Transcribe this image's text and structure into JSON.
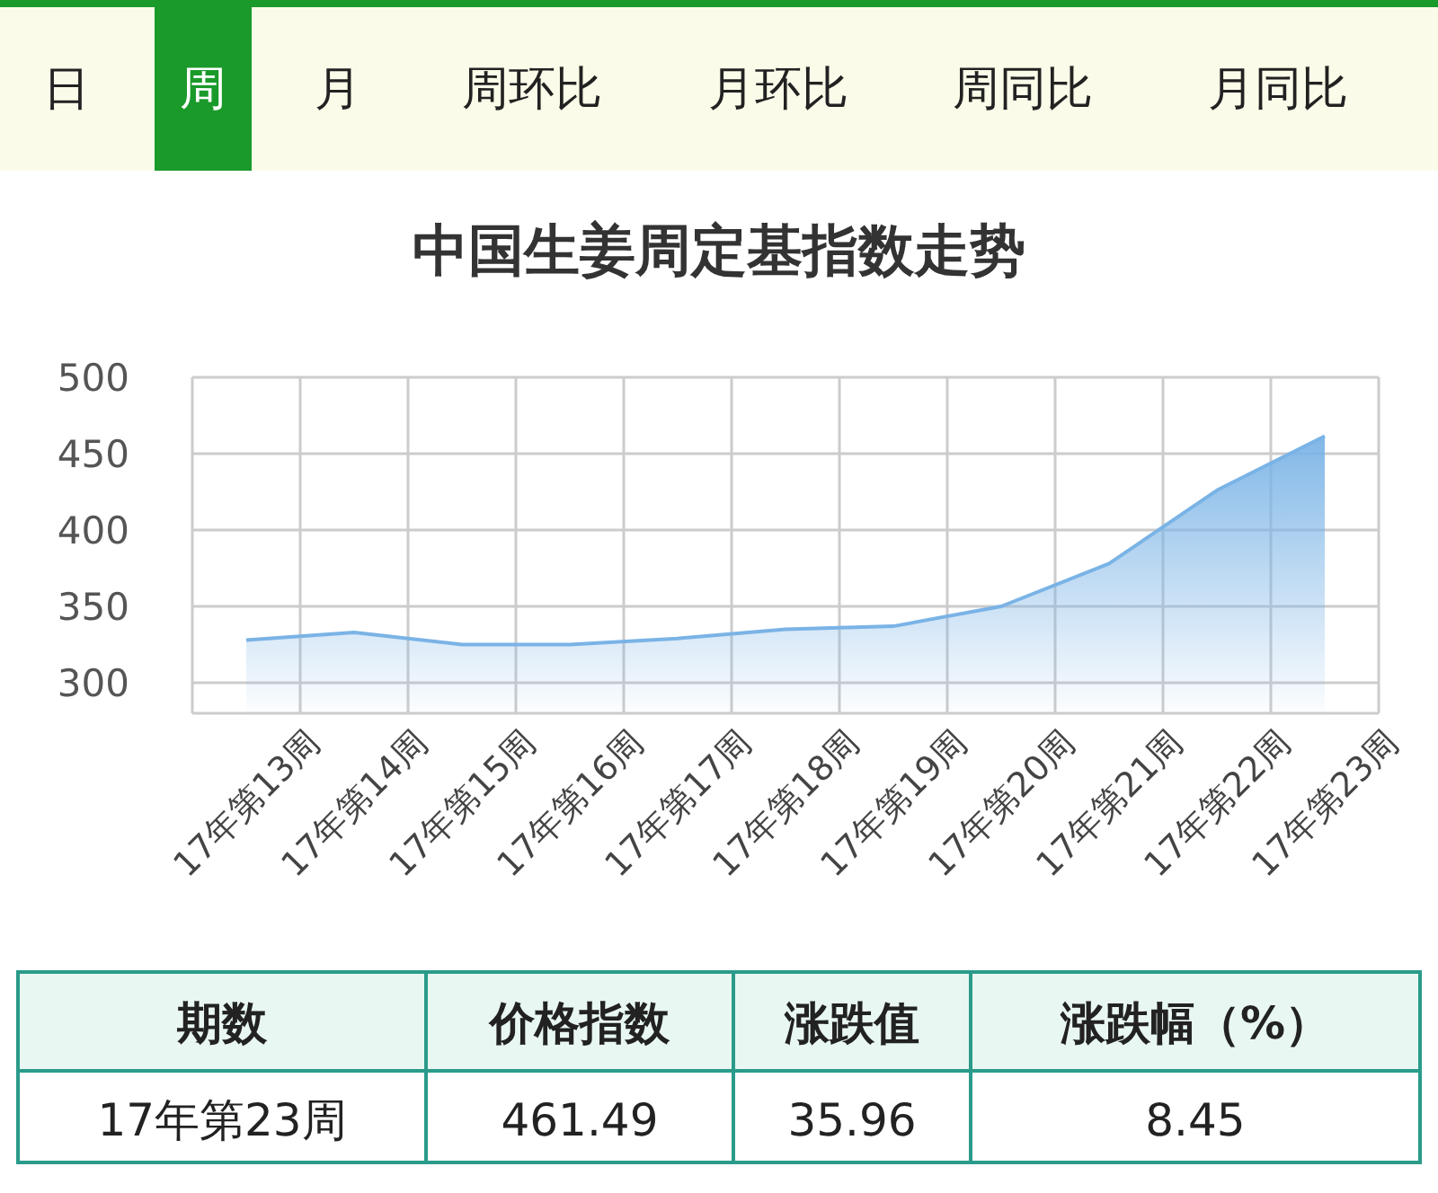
{
  "chart_data": {
    "type": "area",
    "title": "中国生姜周定基指数走势",
    "categories": [
      "17年第13周",
      "17年第14周",
      "17年第15周",
      "17年第16周",
      "17年第17周",
      "17年第18周",
      "17年第19周",
      "17年第20周",
      "17年第21周",
      "17年第22周",
      "17年第23周"
    ],
    "series": [
      {
        "color": "#7ab3e6",
        "values": [
          328,
          333,
          325,
          325,
          329,
          335,
          337,
          350,
          378,
          426,
          461.49
        ]
      }
    ],
    "ylim": [
      280,
      500
    ],
    "yticks": [
      300,
      350,
      400,
      450,
      500
    ],
    "grid": true,
    "annotations": [
      "日",
      "周",
      "月",
      "周环比",
      "月环比",
      "周同比",
      "月同比",
      "期数",
      "价格指数",
      "涨跌值",
      "涨跌幅（%）",
      "17年第23周",
      "461.49",
      "35.96",
      "8.45"
    ]
  }
}
